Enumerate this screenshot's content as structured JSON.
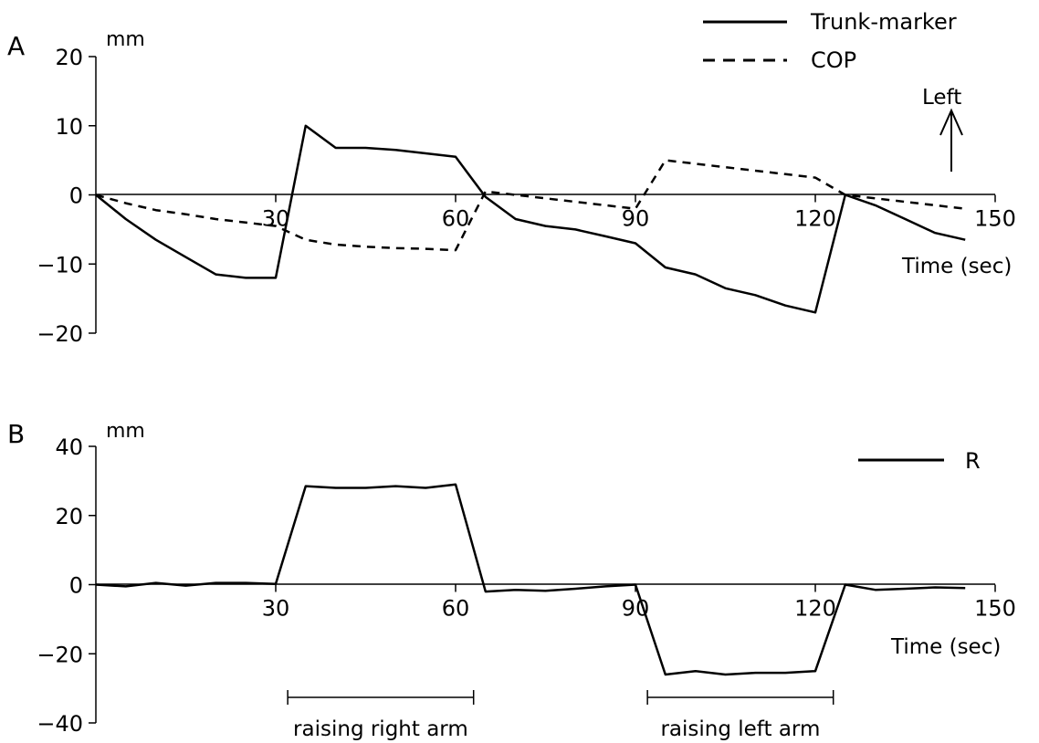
{
  "chart_data": [
    {
      "type": "line",
      "panel_label": "A",
      "unit": "mm",
      "xlabel": "Time (sec)",
      "ylabel": "",
      "xlim": [
        0,
        150
      ],
      "ylim": [
        -20,
        20
      ],
      "x_ticks": [
        "30",
        "60",
        "90",
        "120",
        "150"
      ],
      "y_ticks": [
        "20",
        "10",
        "0",
        "−10",
        "−20"
      ],
      "direction_label": "Left",
      "legend_position": "top-right",
      "series": [
        {
          "name": "Trunk-marker",
          "style": "solid",
          "x": [
            0,
            5,
            10,
            15,
            20,
            25,
            30,
            35,
            40,
            45,
            50,
            55,
            60,
            65,
            70,
            75,
            80,
            85,
            90,
            95,
            100,
            105,
            110,
            115,
            120,
            125,
            130,
            135,
            140,
            145
          ],
          "y": [
            0,
            -3.5,
            -6.5,
            -9.0,
            -11.5,
            -12.0,
            -12.0,
            10.0,
            6.8,
            6.8,
            6.5,
            6.0,
            5.5,
            -0.3,
            -3.5,
            -4.5,
            -5.0,
            -6.0,
            -7.0,
            -10.5,
            -11.5,
            -13.5,
            -14.5,
            -16.0,
            -17.0,
            0,
            -1.5,
            -3.5,
            -5.5,
            -6.5
          ]
        },
        {
          "name": "COP",
          "style": "dashed",
          "x": [
            0,
            5,
            10,
            15,
            20,
            25,
            30,
            35,
            40,
            45,
            50,
            55,
            60,
            65,
            70,
            75,
            80,
            85,
            90,
            95,
            100,
            105,
            110,
            115,
            120,
            125,
            130,
            135,
            140,
            145
          ],
          "y": [
            0,
            -1.2,
            -2.2,
            -2.8,
            -3.5,
            -4.0,
            -4.5,
            -6.5,
            -7.2,
            -7.5,
            -7.7,
            -7.8,
            -8.0,
            0.5,
            0,
            -0.5,
            -1.0,
            -1.5,
            -2.0,
            5.0,
            4.5,
            4.0,
            3.5,
            3.0,
            2.5,
            0,
            -0.5,
            -1.0,
            -1.5,
            -2.0
          ]
        }
      ]
    },
    {
      "type": "line",
      "panel_label": "B",
      "unit": "mm",
      "xlabel": "Time (sec)",
      "ylabel": "",
      "xlim": [
        0,
        150
      ],
      "ylim": [
        -40,
        40
      ],
      "x_ticks": [
        "30",
        "60",
        "90",
        "120",
        "150"
      ],
      "y_ticks": [
        "40",
        "20",
        "0",
        "−20",
        "−40"
      ],
      "legend_position": "top-right",
      "series": [
        {
          "name": "R",
          "style": "solid",
          "x": [
            0,
            5,
            10,
            15,
            20,
            25,
            30,
            35,
            40,
            45,
            50,
            55,
            60,
            65,
            70,
            75,
            80,
            85,
            90,
            95,
            100,
            105,
            110,
            115,
            120,
            125,
            130,
            135,
            140,
            145
          ],
          "y": [
            0,
            -0.5,
            0.5,
            -0.3,
            0.5,
            0.5,
            0.2,
            28.5,
            28.0,
            28.0,
            28.5,
            28.0,
            29.0,
            -2.0,
            -1.5,
            -1.8,
            -1.2,
            -0.5,
            0,
            -26.0,
            -25.0,
            -26.0,
            -25.5,
            -25.5,
            -25.0,
            0,
            -1.5,
            -1.2,
            -0.8,
            -1.0
          ]
        }
      ],
      "annotations": [
        {
          "label": "raising right arm",
          "x_start": 32,
          "x_end": 63
        },
        {
          "label": "raising left arm",
          "x_start": 92,
          "x_end": 123
        }
      ]
    }
  ]
}
